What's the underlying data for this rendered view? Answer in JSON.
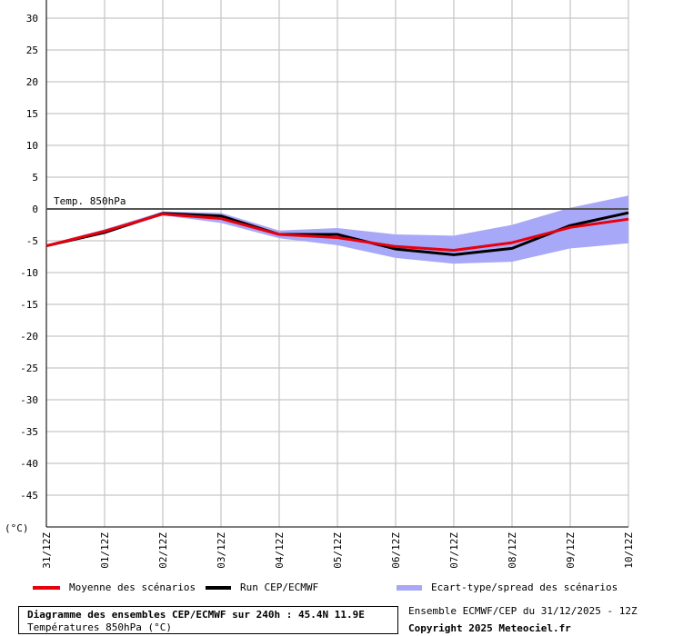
{
  "chart_data": {
    "type": "line",
    "unit_label": "(°C)",
    "annotation": "Temp. 850hPa",
    "y_ticks": [
      30,
      25,
      20,
      15,
      10,
      5,
      0,
      -5,
      -10,
      -15,
      -20,
      -25,
      -30,
      -35,
      -40,
      -45
    ],
    "ylim": [
      -50,
      30
    ],
    "categories": [
      "31/12Z",
      "01/12Z",
      "02/12Z",
      "03/12Z",
      "04/12Z",
      "05/12Z",
      "06/12Z",
      "07/12Z",
      "08/12Z",
      "09/12Z",
      "10/12Z"
    ],
    "grid": true,
    "series": [
      {
        "name": "Moyenne des scénarios",
        "color": "#e8000d",
        "values": [
          -5.8,
          -3.5,
          -0.8,
          -1.5,
          -4.0,
          -4.5,
          -5.9,
          -6.5,
          -5.3,
          -2.9,
          -1.6
        ]
      },
      {
        "name": "Run CEP/ECMWF",
        "color": "#000000",
        "values": [
          -5.8,
          -3.7,
          -0.7,
          -1.1,
          -4.0,
          -4.0,
          -6.3,
          -7.2,
          -6.2,
          -2.6,
          -0.6
        ]
      }
    ],
    "spread": {
      "name": "Ecart-type/spread des scénarios",
      "color": "#a8a8f8",
      "upper": [
        -5.6,
        -3.2,
        -0.4,
        -0.6,
        -3.4,
        -3.0,
        -4.0,
        -4.2,
        -2.5,
        0.2,
        2.1
      ],
      "lower": [
        -6.0,
        -3.9,
        -1.0,
        -2.2,
        -4.6,
        -5.7,
        -7.7,
        -8.6,
        -8.3,
        -6.2,
        -5.4
      ]
    }
  },
  "legend": {
    "mean_label": "Moyenne des scénarios",
    "run_label": "Run CEP/ECMWF",
    "spread_label": "Ecart-type/spread des scénarios"
  },
  "info": {
    "title": "Diagramme des ensembles CEP/ECMWF sur 240h : 45.4N 11.9E",
    "subtitle": "Températures 850hPa (°C)"
  },
  "credits": {
    "ensemble": "Ensemble ECMWF/CEP du 31/12/2025 - 12Z",
    "copyright": "Copyright 2025 Meteociel.fr"
  }
}
